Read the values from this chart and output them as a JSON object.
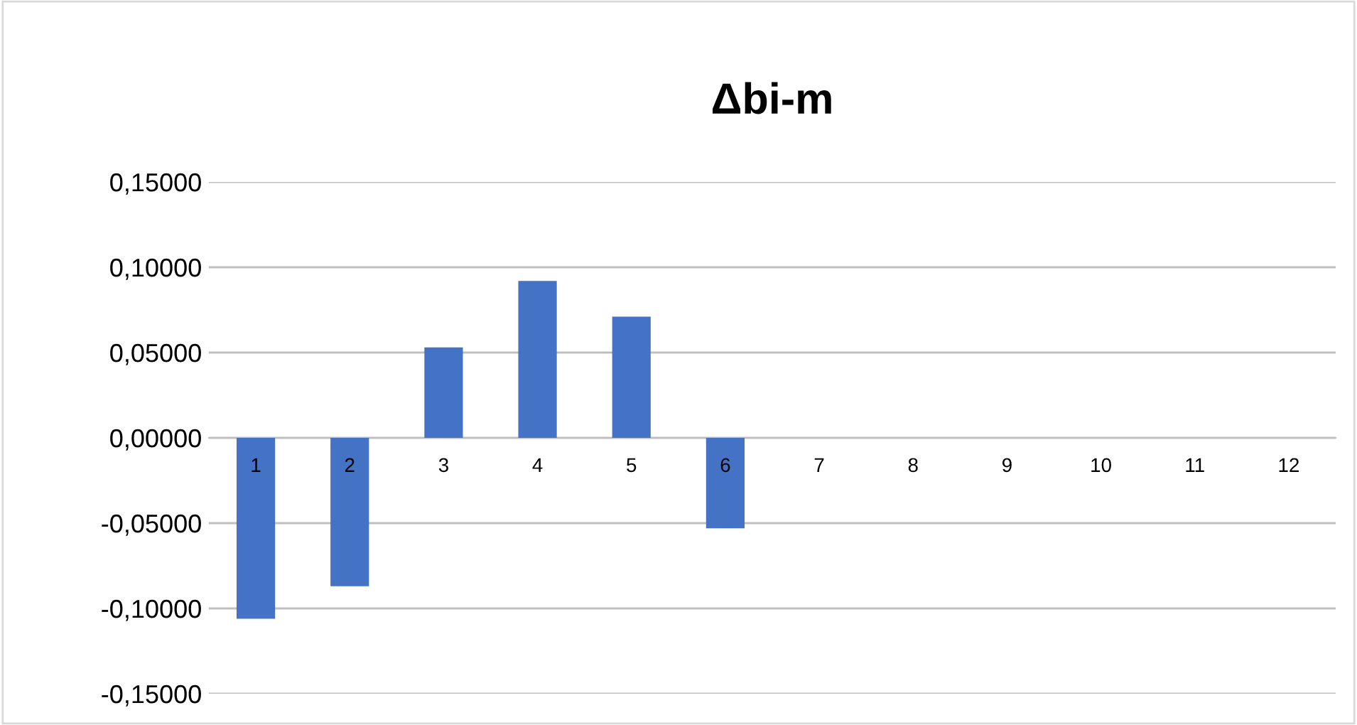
{
  "chart_data": {
    "type": "bar",
    "title": "Δbi-m",
    "categories": [
      "1",
      "2",
      "3",
      "4",
      "5",
      "6",
      "7",
      "8",
      "9",
      "10",
      "11",
      "12"
    ],
    "values": [
      -0.106,
      -0.087,
      0.053,
      0.092,
      0.071,
      -0.053,
      0,
      0,
      0,
      0,
      0,
      0
    ],
    "color": "#4472c4",
    "ylim": [
      -0.15,
      0.15
    ],
    "yticks": [
      {
        "value": -0.15,
        "label": "-0,15000"
      },
      {
        "value": -0.1,
        "label": "-0,10000"
      },
      {
        "value": -0.05,
        "label": "-0,05000"
      },
      {
        "value": 0,
        "label": "0,00000"
      },
      {
        "value": 0.05,
        "label": "0,05000"
      },
      {
        "value": 0.1,
        "label": "0,10000"
      },
      {
        "value": 0.15,
        "label": "0,15000"
      }
    ],
    "grid": "y",
    "legend": false
  }
}
